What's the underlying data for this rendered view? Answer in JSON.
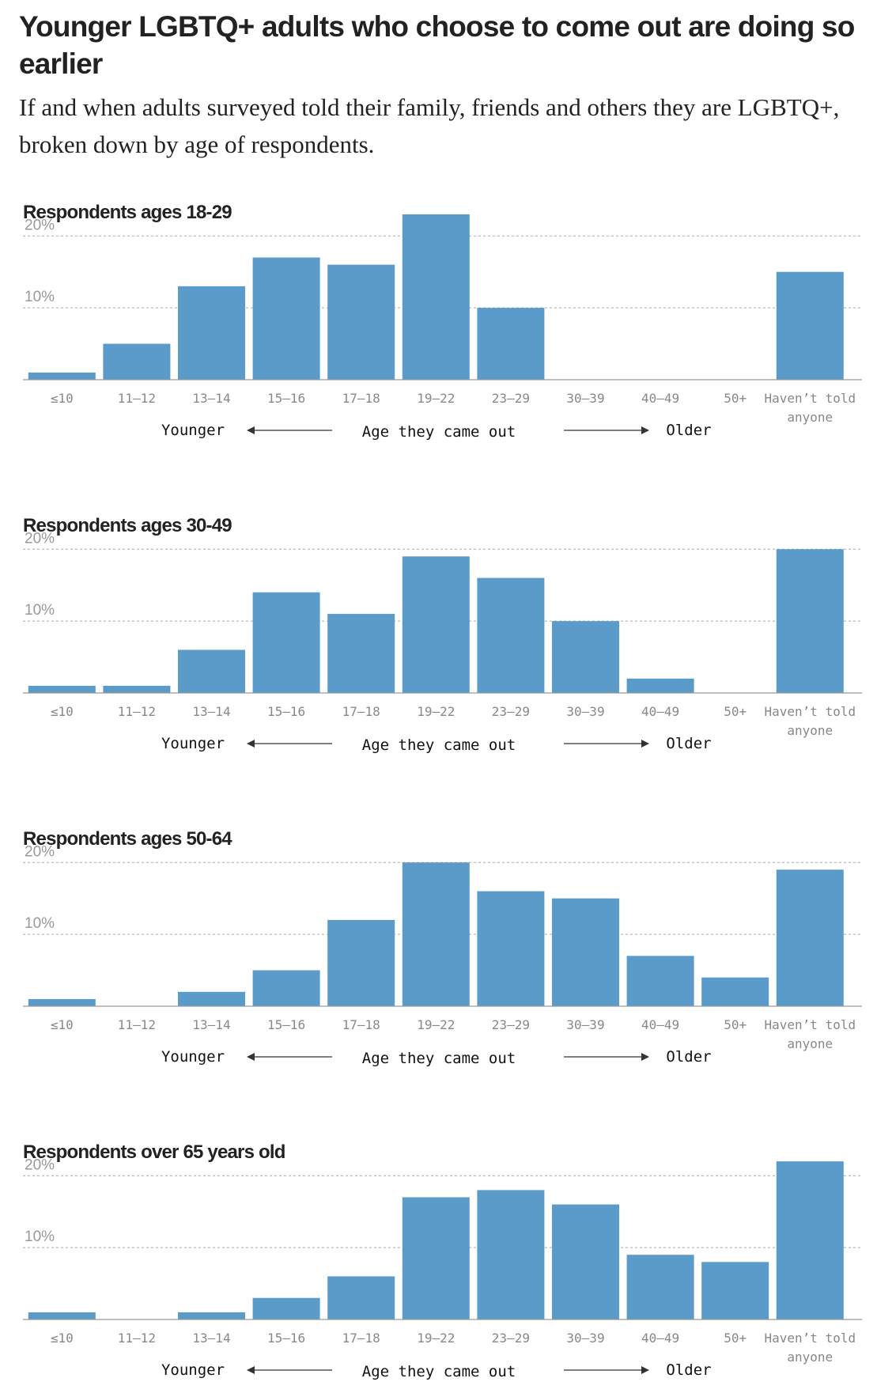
{
  "header": {
    "title": "Younger LGBTQ+ adults who choose to come out are doing so earlier",
    "subtitle": "If and when adults surveyed told their family, friends and others they are LGBTQ+, broken down by age of respondents."
  },
  "axis_note": {
    "left": "Younger",
    "center": "Age they came out",
    "right": "Older"
  },
  "chart_data": [
    {
      "type": "bar",
      "title": "Respondents ages 18-29",
      "color": "#5a9bc9",
      "categories": [
        "≤10",
        "11–12",
        "13–14",
        "15–16",
        "17–18",
        "19–22",
        "23–29",
        "30–39",
        "40–49",
        "50+",
        "Haven’t told anyone"
      ],
      "values": [
        1,
        5,
        13,
        17,
        16,
        23,
        10,
        0,
        0,
        0,
        15
      ],
      "ylim": [
        0,
        23
      ],
      "yticks": [
        {
          "value": 10,
          "label": "10%"
        },
        {
          "value": 20,
          "label": "20%"
        }
      ],
      "grid": true
    },
    {
      "type": "bar",
      "title": "Respondents ages 30-49",
      "color": "#5a9bc9",
      "categories": [
        "≤10",
        "11–12",
        "13–14",
        "15–16",
        "17–18",
        "19–22",
        "23–29",
        "30–39",
        "40–49",
        "50+",
        "Haven’t told anyone"
      ],
      "values": [
        1,
        1,
        6,
        14,
        11,
        19,
        16,
        10,
        2,
        0,
        20
      ],
      "ylim": [
        0,
        23
      ],
      "yticks": [
        {
          "value": 10,
          "label": "10%"
        },
        {
          "value": 20,
          "label": "20%"
        }
      ],
      "grid": true
    },
    {
      "type": "bar",
      "title": "Respondents ages 50-64",
      "color": "#5a9bc9",
      "categories": [
        "≤10",
        "11–12",
        "13–14",
        "15–16",
        "17–18",
        "19–22",
        "23–29",
        "30–39",
        "40–49",
        "50+",
        "Haven’t told anyone"
      ],
      "values": [
        1,
        0,
        2,
        5,
        12,
        20,
        16,
        15,
        7,
        4,
        19
      ],
      "ylim": [
        0,
        23
      ],
      "yticks": [
        {
          "value": 10,
          "label": "10%"
        },
        {
          "value": 20,
          "label": "20%"
        }
      ],
      "grid": true
    },
    {
      "type": "bar",
      "title": "Respondents over 65 years old",
      "color": "#5a9bc9",
      "categories": [
        "≤10",
        "11–12",
        "13–14",
        "15–16",
        "17–18",
        "19–22",
        "23–29",
        "30–39",
        "40–49",
        "50+",
        "Haven’t told anyone"
      ],
      "values": [
        1,
        0,
        1,
        3,
        6,
        17,
        18,
        16,
        9,
        8,
        22
      ],
      "ylim": [
        0,
        23
      ],
      "yticks": [
        {
          "value": 10,
          "label": "10%"
        },
        {
          "value": 20,
          "label": "20%"
        }
      ],
      "grid": true
    }
  ]
}
